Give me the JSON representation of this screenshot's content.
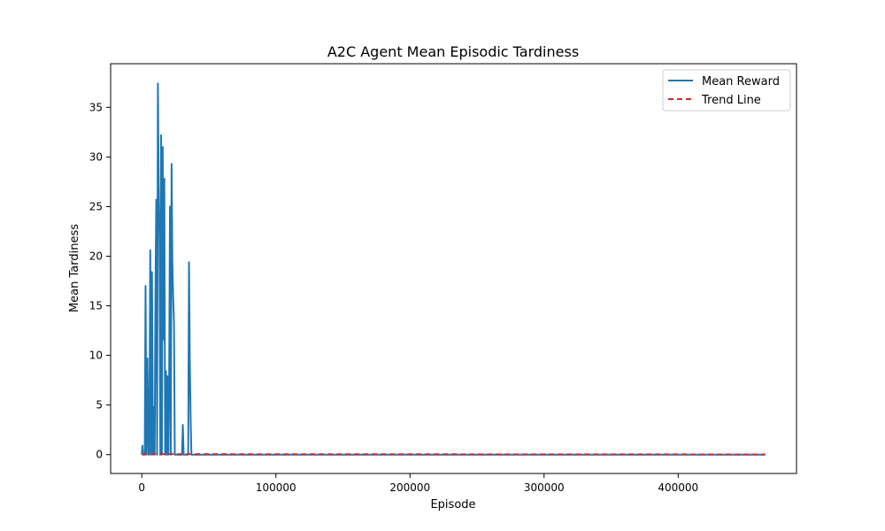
{
  "chart_data": {
    "type": "line",
    "title": "A2C Agent Mean Episodic Tardiness",
    "xlabel": "Episode",
    "ylabel": "Mean Tardiness",
    "xlim": [
      -23250,
      488250
    ],
    "ylim": [
      -1.9,
      39.4
    ],
    "x_ticks": [
      0,
      100000,
      200000,
      300000,
      400000
    ],
    "x_tick_labels": [
      "0",
      "100000",
      "200000",
      "300000",
      "400000"
    ],
    "y_ticks": [
      0,
      5,
      10,
      15,
      20,
      25,
      30,
      35
    ],
    "y_tick_labels": [
      "0",
      "5",
      "10",
      "15",
      "20",
      "25",
      "30",
      "35"
    ],
    "grid": false,
    "legend_position": "top-right",
    "series": [
      {
        "name": "Mean Reward",
        "color": "#1f77b4",
        "style": "solid",
        "x": [
          0,
          500,
          800,
          1500,
          2200,
          2800,
          3500,
          4200,
          5000,
          5600,
          6300,
          7000,
          7600,
          8300,
          8900,
          9600,
          10200,
          10800,
          11400,
          12000,
          12600,
          13200,
          13800,
          14400,
          15000,
          15600,
          16200,
          16800,
          17400,
          18000,
          18600,
          19200,
          19800,
          20400,
          21000,
          21600,
          22200,
          22800,
          23400,
          24000,
          24600,
          25200,
          26000,
          27000,
          28000,
          29000,
          30000,
          30600,
          31200,
          32000,
          33000,
          34000,
          34600,
          35200,
          35800,
          36400,
          37000,
          38000,
          40000,
          60000,
          100000,
          200000,
          300000,
          400000,
          465000
        ],
        "values": [
          0,
          0.9,
          0,
          0,
          0,
          17.0,
          0,
          9.7,
          0,
          0,
          20.6,
          0,
          18.4,
          0,
          4.8,
          0,
          16.6,
          25.7,
          0,
          37.4,
          27.1,
          21.8,
          0,
          32.2,
          0,
          31.0,
          11.6,
          27.8,
          0,
          8.4,
          0,
          7.9,
          0,
          7.6,
          25.0,
          0,
          29.3,
          19.4,
          15.8,
          13.2,
          0,
          0,
          0,
          0,
          0,
          0,
          0,
          3.0,
          0,
          0,
          0,
          0,
          0,
          19.4,
          9.4,
          3.8,
          0,
          0,
          0,
          0,
          0,
          0,
          0,
          0,
          0
        ]
      },
      {
        "name": "Trend Line",
        "color": "#d62728",
        "style": "dashed",
        "x": [
          0,
          465000
        ],
        "values": [
          0.05,
          0.02
        ]
      }
    ]
  }
}
